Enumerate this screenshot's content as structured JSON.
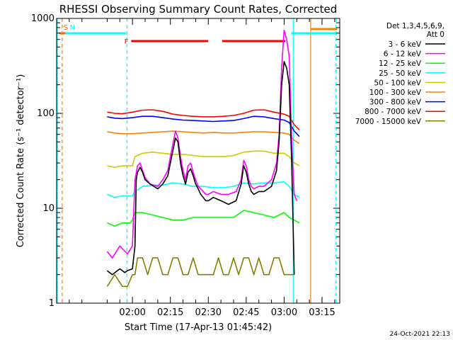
{
  "chart_data": {
    "type": "line",
    "title": "RHESSI Observing Summary Count Rates, Corrected",
    "xlabel": "Start Time (17-Apr-13 01:45:42)",
    "ylabel": "Corrected Count Rate (s⁻¹ detector⁻¹)",
    "xlim_minutes": [
      90.0,
      202.0
    ],
    "ylim": [
      1,
      1000
    ],
    "yscale": "log",
    "x_ticks": [
      {
        "label": "02:00",
        "minute": 120
      },
      {
        "label": "02:15",
        "minute": 135
      },
      {
        "label": "02:30",
        "minute": 150
      },
      {
        "label": "02:45",
        "minute": 165
      },
      {
        "label": "03:00",
        "minute": 180
      },
      {
        "label": "03:15",
        "minute": 195
      }
    ],
    "y_ticks": [
      {
        "label": "1",
        "value": 1
      },
      {
        "label": "10",
        "value": 10
      },
      {
        "label": "100",
        "value": 100
      },
      {
        "label": "1000",
        "value": 1000
      }
    ],
    "legend": {
      "placement": "top-right",
      "header": [
        "Det 1,3,4,5,6,9,",
        "Att 0"
      ]
    },
    "series": [
      {
        "name": "3 - 6 keV",
        "color": "#000000",
        "x": [
          110,
          112,
          115,
          117,
          118,
          120,
          121,
          121.5,
          122,
          123,
          124,
          125,
          127,
          130,
          132,
          134,
          135,
          137,
          138,
          139,
          140,
          141,
          142,
          143,
          144,
          145,
          146,
          147,
          148,
          149,
          150,
          152,
          155,
          158,
          161,
          163,
          164,
          165,
          166,
          167,
          168,
          170,
          172,
          175,
          177,
          178,
          179,
          180,
          181,
          182,
          183,
          184
        ],
        "y": [
          2.2,
          2,
          2.3,
          2.1,
          2.2,
          2.3,
          4,
          20,
          24,
          27,
          24,
          20,
          18,
          16,
          18,
          22,
          30,
          55,
          50,
          30,
          22,
          18,
          24,
          26,
          22,
          18,
          16,
          14,
          13,
          12,
          12,
          13,
          12,
          11,
          12,
          18,
          28,
          24,
          18,
          15,
          14,
          15,
          15,
          17,
          25,
          50,
          200,
          350,
          300,
          200,
          30,
          2
        ]
      },
      {
        "name": "6 - 12 keV",
        "color": "#ff00ff",
        "x": [
          110,
          112,
          115,
          118,
          120,
          121,
          122,
          123,
          124,
          125,
          127,
          130,
          132,
          134,
          135,
          137,
          138,
          139,
          140,
          141,
          142,
          143,
          144,
          145,
          146,
          147,
          148,
          149,
          150,
          152,
          155,
          158,
          161,
          163,
          164,
          165,
          166,
          167,
          168,
          170,
          172,
          175,
          177,
          178,
          179,
          180,
          181,
          182,
          183,
          184,
          185
        ],
        "y": [
          3.5,
          3,
          4,
          3.3,
          4,
          20,
          28,
          30,
          25,
          21,
          18,
          17,
          20,
          25,
          35,
          65,
          55,
          35,
          25,
          20,
          28,
          30,
          24,
          20,
          17,
          16,
          15,
          14,
          14,
          15,
          14,
          14,
          15,
          20,
          32,
          28,
          20,
          17,
          16,
          17,
          17,
          20,
          30,
          60,
          300,
          750,
          600,
          400,
          50,
          14,
          12
        ]
      },
      {
        "name": "12 - 25 keV",
        "color": "#00ff00",
        "x": [
          110,
          113,
          116,
          119,
          120,
          121,
          124,
          128,
          132,
          136,
          140,
          144,
          148,
          152,
          156,
          160,
          164,
          168,
          172,
          176,
          180,
          182,
          184,
          186
        ],
        "y": [
          7,
          6.5,
          7,
          7,
          7.5,
          9,
          9,
          8.5,
          8,
          7.5,
          7.5,
          8,
          8,
          8,
          8,
          8,
          9.5,
          9,
          8.5,
          8,
          9,
          8,
          7.5,
          7
        ]
      },
      {
        "name": "25 - 50 keV",
        "color": "#00ffff",
        "x": [
          110,
          113,
          116,
          120,
          121,
          124,
          128,
          132,
          136,
          140,
          144,
          148,
          152,
          156,
          160,
          164,
          168,
          172,
          176,
          180,
          182,
          184,
          186
        ],
        "y": [
          14,
          13,
          13.5,
          13.5,
          15,
          17,
          17.5,
          17.5,
          18.5,
          18,
          17,
          17,
          16.5,
          16.5,
          17,
          18.5,
          18,
          18.5,
          18.5,
          19,
          17,
          14,
          13
        ]
      },
      {
        "name": "50 - 100 keV",
        "color": "#cccc00",
        "x": [
          110,
          113,
          116,
          120,
          121,
          124,
          128,
          132,
          136,
          140,
          144,
          148,
          152,
          156,
          160,
          164,
          168,
          172,
          176,
          180,
          182,
          184,
          186
        ],
        "y": [
          28,
          27,
          28,
          28,
          35,
          38,
          39,
          38,
          37,
          37,
          36,
          35,
          35,
          35,
          36,
          39,
          40,
          40,
          38,
          38,
          35,
          30,
          28
        ]
      },
      {
        "name": "100 - 300 keV",
        "color": "#ff8000",
        "x": [
          110,
          113,
          116,
          120,
          124,
          128,
          132,
          136,
          140,
          144,
          148,
          152,
          156,
          160,
          164,
          168,
          172,
          176,
          180,
          182,
          184,
          186
        ],
        "y": [
          64,
          62,
          61,
          61,
          62,
          63,
          64,
          65,
          64,
          63,
          62,
          63,
          62,
          62,
          63,
          64,
          64,
          63,
          62,
          60,
          52,
          48
        ]
      },
      {
        "name": "300 - 800 keV",
        "color": "#0000ff",
        "x": [
          110,
          113,
          116,
          120,
          124,
          128,
          132,
          136,
          140,
          144,
          148,
          152,
          156,
          160,
          164,
          168,
          172,
          176,
          180,
          182,
          184,
          186
        ],
        "y": [
          92,
          89,
          88,
          90,
          93,
          93,
          90,
          87,
          85,
          84,
          83,
          82,
          83,
          84,
          88,
          93,
          92,
          88,
          85,
          80,
          65,
          57
        ]
      },
      {
        "name": "800 - 7000 keV",
        "color": "#ff0000",
        "x": [
          110,
          113,
          116,
          120,
          124,
          128,
          132,
          136,
          140,
          144,
          148,
          152,
          156,
          160,
          164,
          168,
          172,
          176,
          180,
          182,
          184,
          186
        ],
        "y": [
          103,
          100,
          99,
          103,
          108,
          109,
          105,
          98,
          95,
          93,
          92,
          92,
          93,
          95,
          100,
          108,
          109,
          103,
          98,
          93,
          76,
          67
        ]
      },
      {
        "name": "7000 - 15000 keV",
        "color": "#808000",
        "x": [
          110,
          113,
          116,
          118,
          120,
          121,
          122,
          124,
          126,
          128,
          130,
          132,
          134,
          136,
          138,
          140,
          142,
          144,
          146,
          148,
          150,
          152,
          154,
          156,
          158,
          160,
          162,
          164,
          166,
          168,
          170,
          172,
          174,
          176,
          178,
          180,
          182,
          184
        ],
        "y": [
          1.5,
          2,
          1.5,
          1.5,
          2,
          2,
          3,
          3,
          2,
          3,
          3,
          2,
          2,
          3,
          3,
          2,
          2,
          3,
          2,
          2,
          2,
          2,
          3,
          2,
          2,
          3,
          2,
          3,
          3,
          2,
          3,
          2,
          2,
          3,
          3,
          2,
          2,
          2
        ]
      }
    ],
    "annotations": {
      "top_bars": [
        {
          "label": "S",
          "color": "#ff6a00",
          "x_start": 91.0,
          "x_end": 93.5
        },
        {
          "label": "N",
          "color": "#00ffff",
          "x_start": 93.5,
          "x_end": 117.5
        },
        {
          "label": "",
          "color": "#00ffff",
          "x_start": 182.8,
          "x_end": 201.0
        },
        {
          "label": "",
          "color": "#ff8000",
          "x_start": 190.5,
          "x_end": 201.0
        },
        {
          "label": "F",
          "color": "#ff0000",
          "x_start": 119.5,
          "x_end": 150.0
        },
        {
          "label": "",
          "color": "#ff0000",
          "x_start": 155.5,
          "x_end": 180.5
        }
      ],
      "vertical_lines": [
        {
          "x": 90.3,
          "color": "#00ffff",
          "style": "solid"
        },
        {
          "x": 92.2,
          "color": "#ff8000",
          "style": "dashed"
        },
        {
          "x": 117.8,
          "color": "#00ffff",
          "style": "dashed"
        },
        {
          "x": 183.6,
          "color": "#00ffff",
          "style": "solid"
        },
        {
          "x": 190.5,
          "color": "#ff8000",
          "style": "solid"
        },
        {
          "x": 200.5,
          "color": "#00ffff",
          "style": "dashed"
        }
      ]
    },
    "timestamp": "24-Oct-2021 22:13"
  }
}
